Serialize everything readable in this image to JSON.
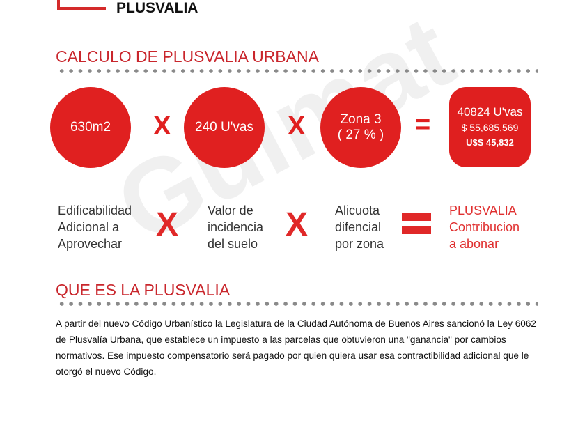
{
  "header": {
    "title": "PLUSVALIA"
  },
  "watermark": {
    "text": "Guimat propiedades"
  },
  "calc": {
    "title": "CALCULO DE PLUSVALIA URBANA",
    "area": "630m2",
    "uvas": "240 U'vas",
    "zona_line1": "Zona 3",
    "zona_line2": "( 27 % )",
    "operator_x": "X",
    "operator_eq": "=",
    "result": {
      "uvas": "40824 U'vas",
      "pesos": "$ 55,685,569",
      "usd": "U$S 45,832"
    }
  },
  "legend": {
    "item1": [
      "Edificabilidad",
      "Adicional a",
      "Aprovechar"
    ],
    "item2": [
      "Valor de",
      "incidencia",
      "del suelo"
    ],
    "item3": [
      "Alicuota",
      "difencial",
      "por zona"
    ],
    "item4": [
      "PLUSVALIA",
      "Contribucion",
      "a abonar"
    ]
  },
  "about": {
    "title": "QUE ES LA PLUSVALIA",
    "text": "A partir del nuevo Código Urbanístico la Legislatura de la Ciudad Autónoma de Buenos Aires sancionó la Ley 6062 de Plusvalía Urbana, que establece un impuesto a las parcelas que obtuvieron una \"ganancia\" por cambios normativos. Ese impuesto compensatorio será pagado por quien quiera usar esa contractibilidad adicional que le otorgó el nuevo Código."
  },
  "colors": {
    "accent": "#e02020",
    "heading": "#c9262c"
  }
}
